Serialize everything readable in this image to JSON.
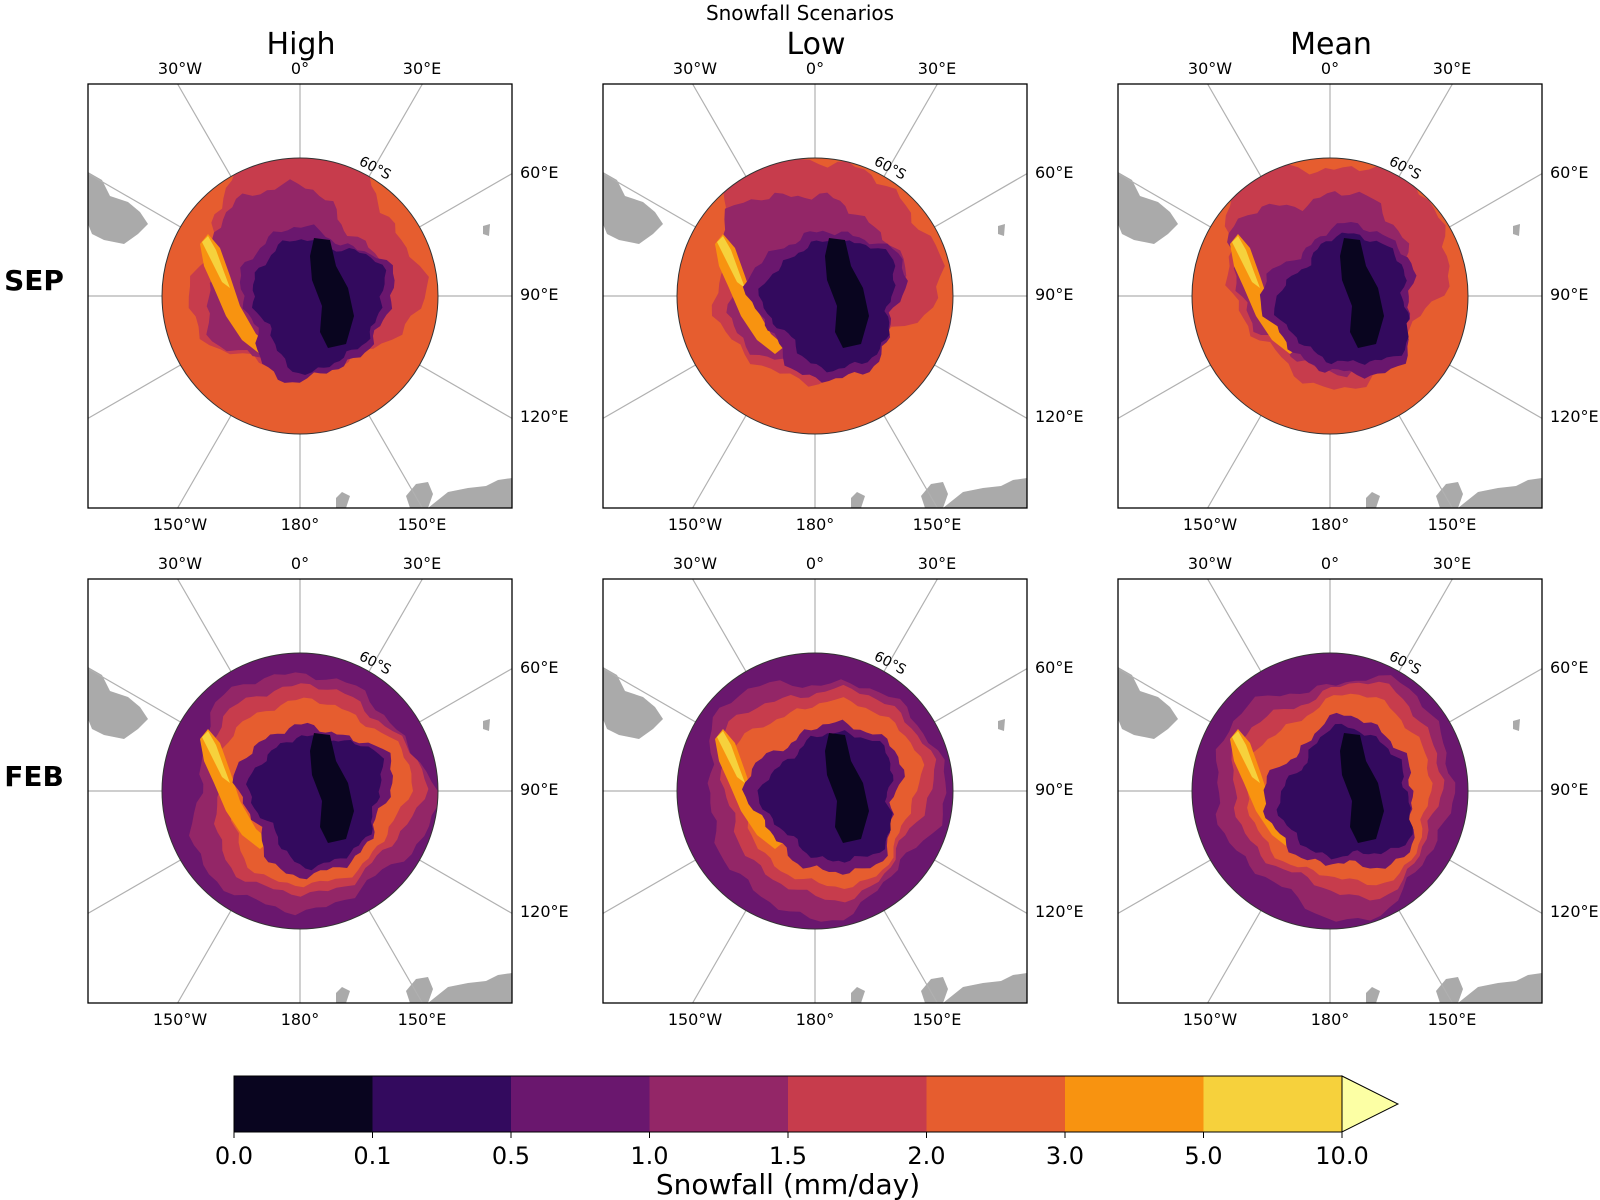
{
  "figure": {
    "title": "Snowfall Scenarios",
    "columns": [
      "High",
      "Low",
      "Mean"
    ],
    "rows": [
      "SEP",
      "FEB"
    ]
  },
  "map_labels": {
    "top": [
      "30°W",
      "0°",
      "30°E"
    ],
    "right": [
      "60°E",
      "90°E",
      "120°E"
    ],
    "bottom": [
      "150°W",
      "180°",
      "150°E"
    ],
    "latitude": "60°S"
  },
  "colorbar": {
    "label": "Snowfall (mm/day)",
    "ticks": [
      "0.0",
      "0.1",
      "0.5",
      "1.0",
      "1.5",
      "2.0",
      "3.0",
      "5.0",
      "10.0"
    ],
    "colors": [
      "#09051f",
      "#330a5e",
      "#6a176e",
      "#932667",
      "#c73c4c",
      "#e65d2f",
      "#f89310",
      "#f6d13c",
      "#fcffa4"
    ],
    "extend": "max"
  },
  "colors": {
    "land": "#aaaaaa",
    "gridline": "#b0b0b0",
    "frame": "#000000"
  },
  "panels": [
    {
      "row": "SEP",
      "column": "High"
    },
    {
      "row": "SEP",
      "column": "Low"
    },
    {
      "row": "SEP",
      "column": "Mean"
    },
    {
      "row": "FEB",
      "column": "High"
    },
    {
      "row": "FEB",
      "column": "Low"
    },
    {
      "row": "FEB",
      "column": "Mean"
    }
  ]
}
